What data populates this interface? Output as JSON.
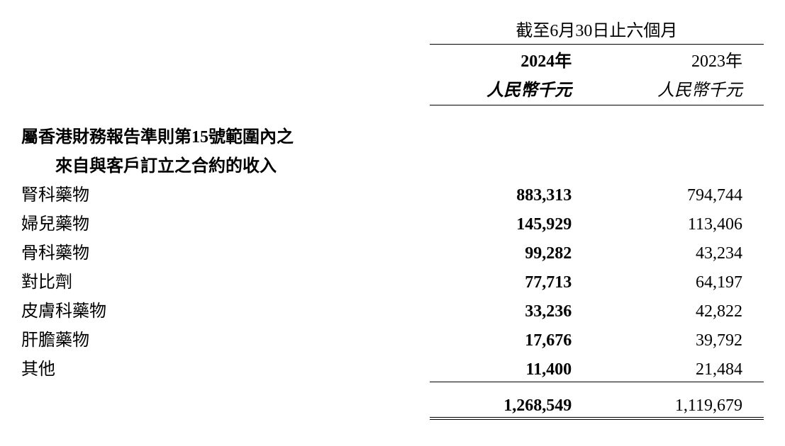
{
  "header": {
    "period_title": "截至6月30日止六個月",
    "year_2024": "2024年",
    "year_2023": "2023年",
    "unit_2024": "人民幣千元",
    "unit_2023": "人民幣千元"
  },
  "section": {
    "heading_line1": "屬香港財務報告準則第15號範圍內之",
    "heading_line2": "來自與客戶訂立之合約的收入"
  },
  "rows": [
    {
      "label": "腎科藥物",
      "v2024": "883,313",
      "v2023": "794,744"
    },
    {
      "label": "婦兒藥物",
      "v2024": "145,929",
      "v2023": "113,406"
    },
    {
      "label": "骨科藥物",
      "v2024": "99,282",
      "v2023": "43,234"
    },
    {
      "label": "對比劑",
      "v2024": "77,713",
      "v2023": "64,197"
    },
    {
      "label": "皮膚科藥物",
      "v2024": "33,236",
      "v2023": "42,822"
    },
    {
      "label": "肝膽藥物",
      "v2024": "17,676",
      "v2023": "39,792"
    },
    {
      "label": "其他",
      "v2024": "11,400",
      "v2023": "21,484"
    }
  ],
  "total": {
    "v2024": "1,268,549",
    "v2023": "1,119,679"
  },
  "style": {
    "structure": "table",
    "columns": [
      "label",
      "2024",
      "2023"
    ],
    "background_color": "#ffffff",
    "text_color": "#000000",
    "rule_color": "#000000",
    "label_fontsize": 24,
    "value_fontsize": 24,
    "year_2024_fontweight": "bold",
    "year_2023_fontweight": "normal",
    "unit_fontstyle": "italic",
    "total_rule": "double"
  }
}
